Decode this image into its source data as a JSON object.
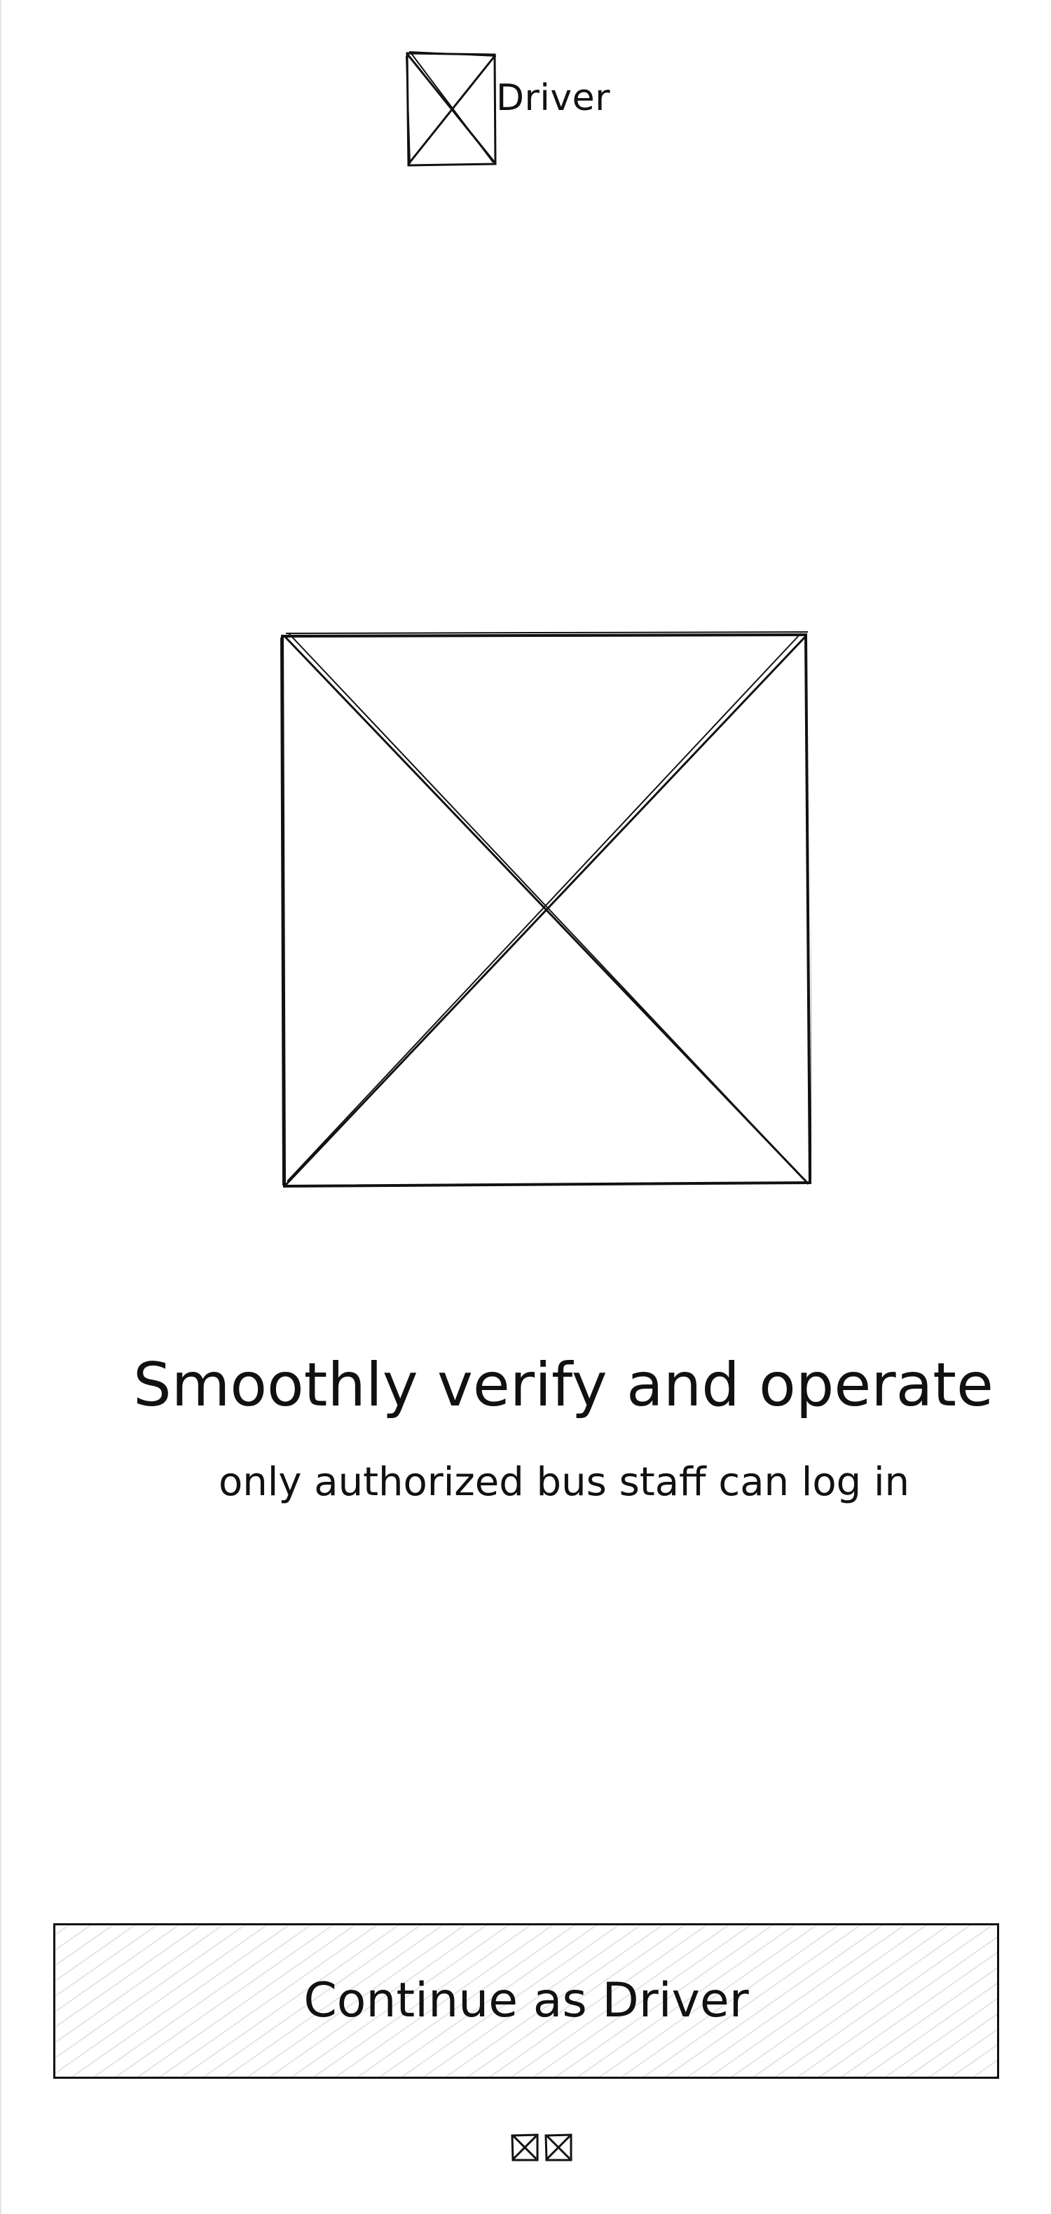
{
  "header": {
    "role_label": "Driver",
    "logo_icon": "placeholder-image-icon"
  },
  "hero": {
    "image_icon": "placeholder-image-icon"
  },
  "content": {
    "headline": "Smoothly verify and operate",
    "subtext": "only authorized bus staff can log in"
  },
  "actions": {
    "continue_label": "Continue as Driver"
  },
  "footer": {
    "icons": [
      "placeholder-image-icon",
      "placeholder-image-icon"
    ]
  },
  "colors": {
    "stroke": "#111111",
    "background": "#ffffff",
    "hatch": "#cfcfcf"
  }
}
